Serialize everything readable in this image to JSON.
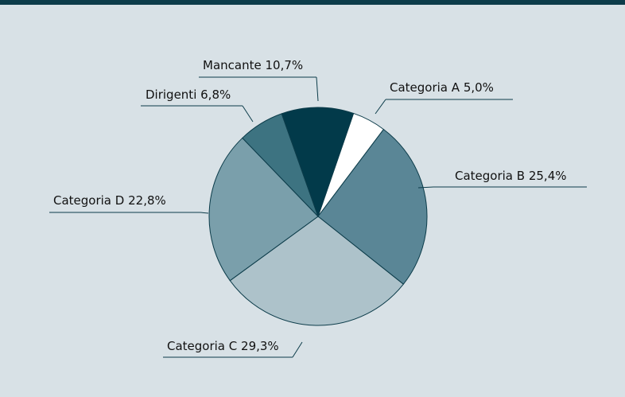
{
  "chart_data": {
    "type": "pie",
    "categories": [
      "Categoria A",
      "Categoria B",
      "Categoria C",
      "Categoria D",
      "Dirigenti",
      "Mancante"
    ],
    "values": [
      5.0,
      25.4,
      29.3,
      22.8,
      6.8,
      10.7
    ],
    "value_labels": [
      "5,0%",
      "25,4%",
      "29,3%",
      "22,8%",
      "6,8%",
      "10,7%"
    ],
    "colors": [
      "#ffffff",
      "#5a8696",
      "#adc2ca",
      "#7a9fab",
      "#3d7381",
      "#023a4a"
    ]
  }
}
